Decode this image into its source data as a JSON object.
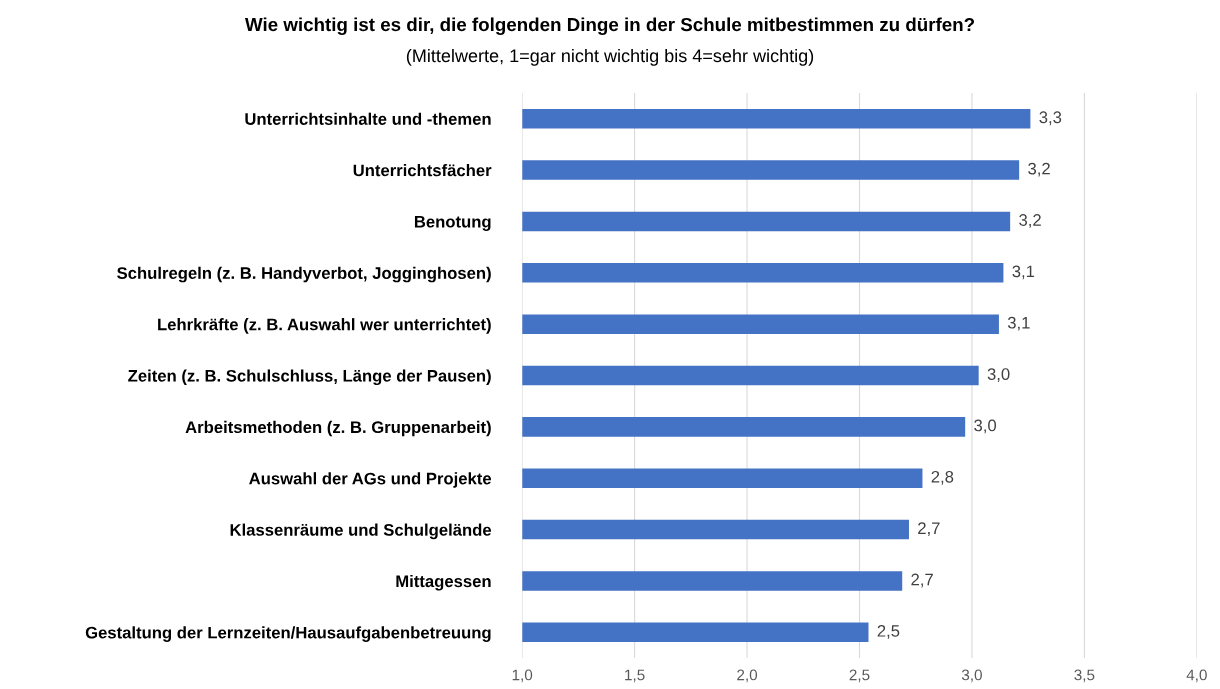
{
  "chart_data": {
    "type": "bar",
    "orientation": "horizontal",
    "title": "Wie wichtig ist es dir, die folgenden Dinge in der Schule mitbestimmen zu dürfen?",
    "subtitle": "(Mittelwerte, 1=gar nicht wichtig bis 4=sehr wichtig)",
    "categories": [
      "Unterrichtsinhalte und -themen",
      "Unterrichtsfächer",
      "Benotung",
      "Schulregeln (z. B. Handyverbot, Jogginghosen)",
      "Lehrkräfte (z. B. Auswahl wer unterrichtet)",
      "Zeiten (z. B. Schulschluss, Länge der Pausen)",
      "Arbeitsmethoden (z. B. Gruppenarbeit)",
      "Auswahl der AGs und Projekte",
      "Klassenräume und Schulgelände",
      "Mittagessen",
      "Gestaltung der Lernzeiten/Hausaufgabenbetreuung"
    ],
    "values": [
      3.26,
      3.21,
      3.17,
      3.14,
      3.12,
      3.03,
      2.97,
      2.78,
      2.72,
      2.69,
      2.54
    ],
    "value_labels": [
      "3,3",
      "3,2",
      "3,2",
      "3,1",
      "3,1",
      "3,0",
      "3,0",
      "2,8",
      "2,7",
      "2,7",
      "2,5"
    ],
    "color": "#4472c4",
    "xlim": [
      1.0,
      4.0
    ],
    "xticks": [
      {
        "value": 1.0,
        "label": "1,0"
      },
      {
        "value": 1.5,
        "label": "1,5"
      },
      {
        "value": 2.0,
        "label": "2,0"
      },
      {
        "value": 2.5,
        "label": "2,5"
      },
      {
        "value": 3.0,
        "label": "3,0"
      },
      {
        "value": 3.5,
        "label": "3,5"
      },
      {
        "value": 4.0,
        "label": "4,0"
      }
    ],
    "grid": "x",
    "legend": false
  }
}
